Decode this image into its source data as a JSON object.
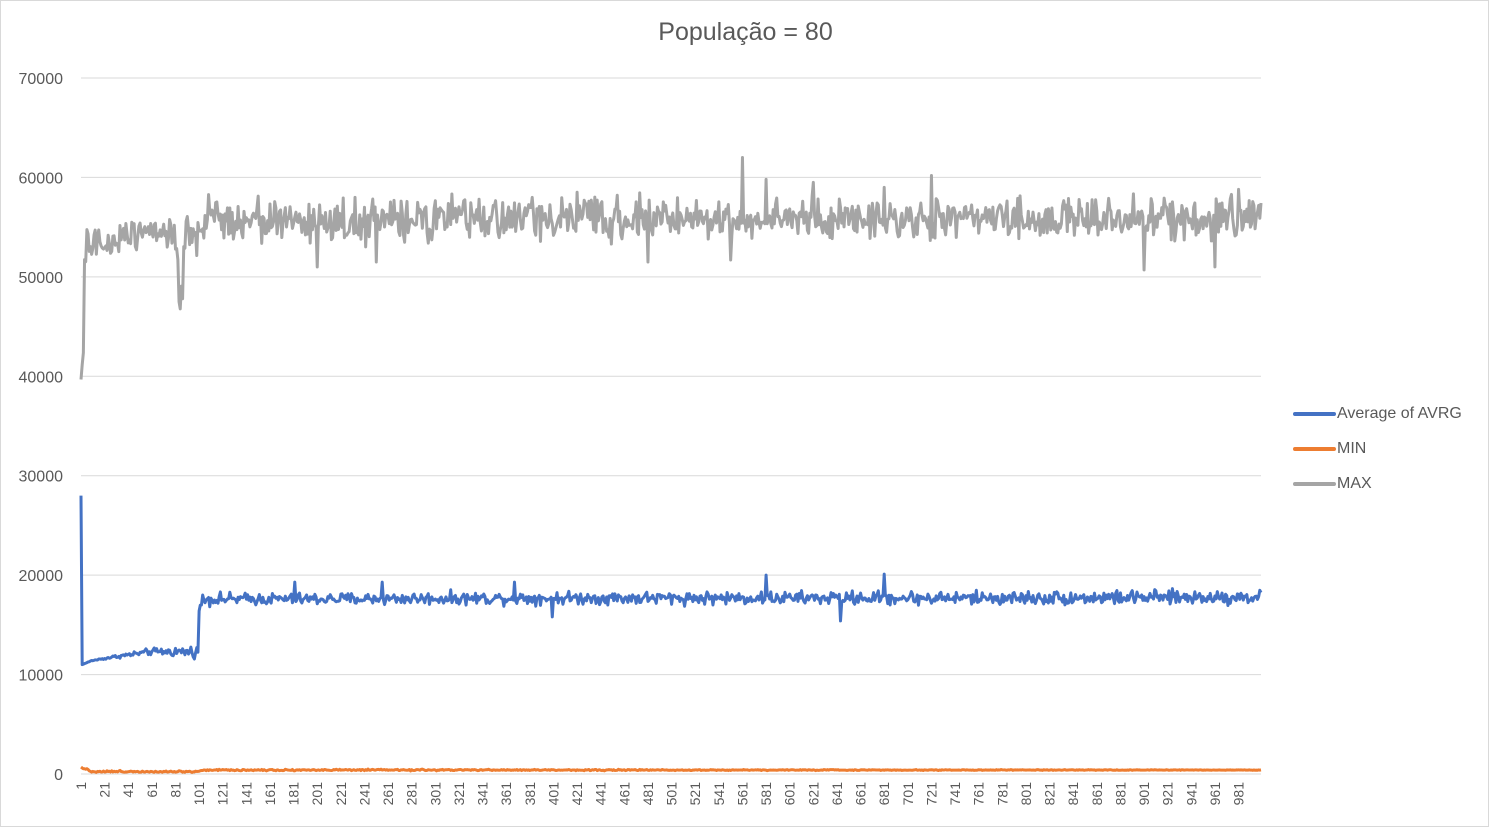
{
  "chart_data": {
    "type": "line",
    "title": "População = 80",
    "xlabel": "",
    "ylabel": "",
    "x_range": [
      1,
      1000
    ],
    "x_tick_labels": [
      "1",
      "21",
      "41",
      "61",
      "81",
      "101",
      "121",
      "141",
      "161",
      "181",
      "201",
      "221",
      "241",
      "261",
      "281",
      "301",
      "321",
      "341",
      "361",
      "381",
      "401",
      "421",
      "441",
      "461",
      "481",
      "501",
      "521",
      "541",
      "561",
      "581",
      "601",
      "621",
      "641",
      "661",
      "681",
      "701",
      "721",
      "741",
      "761",
      "781",
      "801",
      "821",
      "841",
      "861",
      "881",
      "901",
      "921",
      "941",
      "961",
      "981"
    ],
    "y_ticks": [
      0,
      10000,
      20000,
      30000,
      40000,
      50000,
      60000,
      70000
    ],
    "ylim": [
      0,
      70000
    ],
    "grid": "horizontal",
    "legend_position": "right",
    "series": [
      {
        "name": "Average of AVRG",
        "color": "#4472c4",
        "anchors": [
          [
            1,
            28000
          ],
          [
            2,
            11000
          ],
          [
            10,
            11400
          ],
          [
            30,
            11800
          ],
          [
            60,
            12300
          ],
          [
            98,
            12300
          ],
          [
            100,
            12300
          ],
          [
            101,
            16500
          ],
          [
            104,
            17600
          ],
          [
            200,
            17600
          ],
          [
            400,
            17700
          ],
          [
            600,
            17700
          ],
          [
            800,
            17700
          ],
          [
            1000,
            17800
          ]
        ],
        "noise": [
          [
            1,
            0
          ],
          [
            101,
            500
          ],
          [
            1000,
            600
          ]
        ],
        "spikes": [
          [
            103,
            17000
          ],
          [
            182,
            19300
          ],
          [
            256,
            19300
          ],
          [
            368,
            19300
          ],
          [
            400,
            15800
          ],
          [
            581,
            20000
          ],
          [
            681,
            20100
          ],
          [
            644,
            15400
          ]
        ]
      },
      {
        "name": "MIN",
        "color": "#ed7d31",
        "anchors": [
          [
            1,
            700
          ],
          [
            10,
            250
          ],
          [
            100,
            250
          ],
          [
            105,
            400
          ],
          [
            1000,
            400
          ]
        ],
        "noise": [
          [
            1,
            80
          ],
          [
            1000,
            20
          ]
        ],
        "spikes": []
      },
      {
        "name": "MAX",
        "color": "#a5a5a5",
        "anchors": [
          [
            1,
            40000
          ],
          [
            3,
            42000
          ],
          [
            4,
            50300
          ],
          [
            6,
            53500
          ],
          [
            20,
            53000
          ],
          [
            50,
            55000
          ],
          [
            80,
            54500
          ],
          [
            85,
            48000
          ],
          [
            90,
            54500
          ],
          [
            100,
            53500
          ],
          [
            110,
            56000
          ],
          [
            200,
            55500
          ],
          [
            400,
            56000
          ],
          [
            600,
            55800
          ],
          [
            800,
            55800
          ],
          [
            1000,
            56000
          ]
        ],
        "noise": [
          [
            1,
            1200
          ],
          [
            100,
            1800
          ],
          [
            1000,
            1700
          ]
        ],
        "spikes": [
          [
            84,
            47500
          ],
          [
            87,
            47800
          ],
          [
            201,
            51000
          ],
          [
            251,
            51500
          ],
          [
            481,
            51500
          ],
          [
            551,
            51700
          ],
          [
            561,
            62000
          ],
          [
            581,
            59800
          ],
          [
            621,
            59500
          ],
          [
            681,
            59000
          ],
          [
            721,
            60200
          ],
          [
            901,
            50700
          ],
          [
            961,
            51000
          ],
          [
            981,
            58800
          ]
        ]
      }
    ]
  }
}
